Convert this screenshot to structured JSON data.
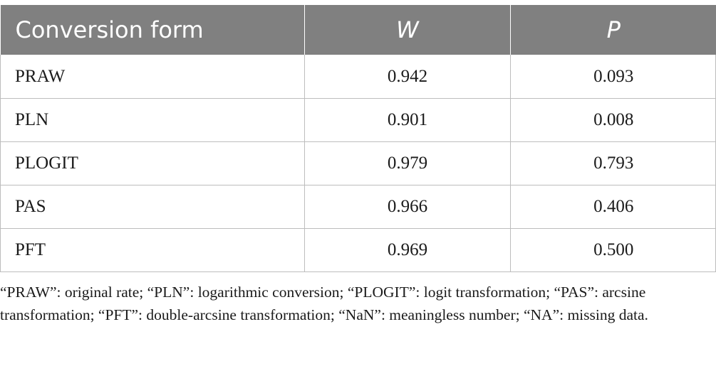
{
  "table": {
    "headers": [
      "Conversion form",
      "W",
      "P"
    ],
    "rows": [
      [
        "PRAW",
        "0.942",
        "0.093"
      ],
      [
        "PLN",
        "0.901",
        "0.008"
      ],
      [
        "PLOGIT",
        "0.979",
        "0.793"
      ],
      [
        "PAS",
        "0.966",
        "0.406"
      ],
      [
        "PFT",
        "0.969",
        "0.500"
      ]
    ]
  },
  "footnote": "“PRAW”: original rate; “PLN”: logarithmic conversion; “PLOGIT”: logit transformation; “PAS”: arcsine transformation; “PFT”: double-arcsine transformation; “NaN”: meaningless number; “NA”: missing data."
}
